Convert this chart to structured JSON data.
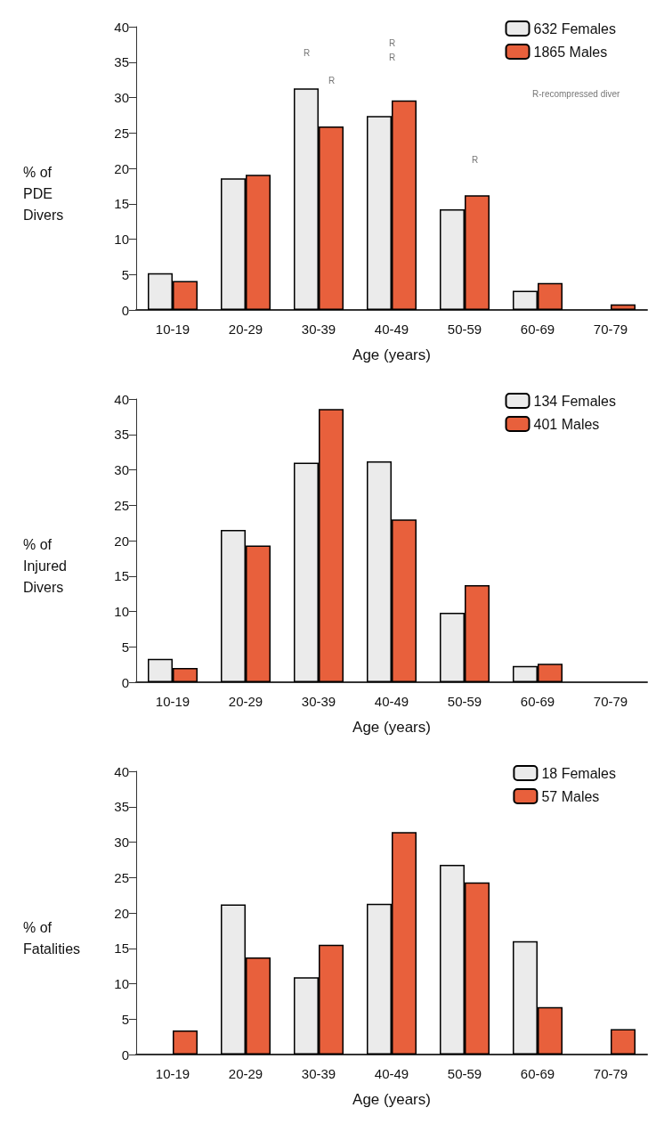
{
  "chart_data": [
    {
      "type": "bar",
      "xlabel": "Age (years)",
      "ylabel": "% of\nPDE\nDivers",
      "categories": [
        "10-19",
        "20-29",
        "30-39",
        "40-49",
        "50-59",
        "60-69",
        "70-79"
      ],
      "ylim": [
        0,
        40
      ],
      "yticks": [
        0,
        5,
        10,
        15,
        20,
        25,
        30,
        35,
        40
      ],
      "legend": "top right",
      "series": [
        {
          "name": "632 Females",
          "color": "#ebebeb",
          "values": [
            5.2,
            18.6,
            31.3,
            27.4,
            14.2,
            2.7,
            null
          ]
        },
        {
          "name": "1865 Males",
          "color": "#e8603c",
          "values": [
            4.1,
            19.1,
            25.9,
            29.6,
            16.2,
            3.8,
            0.8
          ]
        }
      ],
      "annotations": [
        "R",
        "R",
        "R",
        "R",
        "R",
        "R-recompressed diver"
      ]
    },
    {
      "type": "bar",
      "xlabel": "Age (years)",
      "ylabel": "% of\nInjured\nDivers",
      "categories": [
        "10-19",
        "20-29",
        "30-39",
        "40-49",
        "50-59",
        "60-69",
        "70-79"
      ],
      "ylim": [
        0,
        40
      ],
      "yticks": [
        0,
        5,
        10,
        15,
        20,
        25,
        30,
        35,
        40
      ],
      "legend": "top right",
      "series": [
        {
          "name": "134 Females",
          "color": "#ebebeb",
          "values": [
            3.3,
            21.5,
            31,
            31.2,
            9.8,
            2.3,
            null
          ]
        },
        {
          "name": "401 Males",
          "color": "#e8603c",
          "values": [
            2,
            19.3,
            38.6,
            23,
            13.7,
            2.6,
            null
          ]
        }
      ]
    },
    {
      "type": "bar",
      "xlabel": "Age (years)",
      "ylabel": "% of\nFatalities",
      "categories": [
        "10-19",
        "20-29",
        "30-39",
        "40-49",
        "50-59",
        "60-69",
        "70-79"
      ],
      "ylim": [
        0,
        40
      ],
      "yticks": [
        0,
        5,
        10,
        15,
        20,
        25,
        30,
        35,
        40
      ],
      "legend": "top right",
      "series": [
        {
          "name": "18 Females",
          "color": "#ebebeb",
          "values": [
            null,
            21.2,
            10.9,
            21.3,
            26.8,
            16,
            null
          ]
        },
        {
          "name": "57 Males",
          "color": "#e8603c",
          "values": [
            3.4,
            13.7,
            15.5,
            31.4,
            24.3,
            6.7,
            3.6
          ]
        }
      ]
    }
  ]
}
